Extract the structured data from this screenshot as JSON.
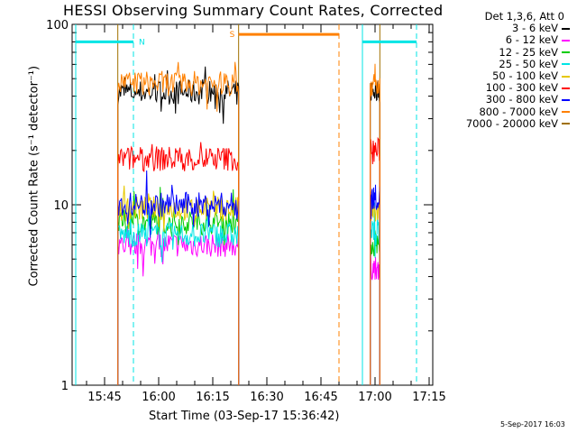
{
  "chart_data": {
    "type": "line",
    "title": "HESSI Observing Summary Count Rates, Corrected",
    "xlabel": "Start Time (03-Sep-17 15:36:42)",
    "ylabel": "Corrected Count Rate (s⁻¹ detector⁻¹)",
    "y_scale": "log",
    "ylim": [
      1,
      100
    ],
    "y_ticks": [
      "1",
      "10",
      "100"
    ],
    "x_range_minutes": [
      "15:36",
      "17:16"
    ],
    "x_ticks": [
      "15:45",
      "16:00",
      "16:15",
      "16:30",
      "16:45",
      "17:00",
      "17:15"
    ],
    "legend_title": "Det 1,3,6, Att 0",
    "series": [
      {
        "name": "3 - 6 keV",
        "color": "#000000",
        "segments": [
          [
            "15:48:40",
            "16:22:10",
            42
          ],
          [
            "16:58:40",
            "17:01:20",
            43
          ]
        ]
      },
      {
        "name": "6 - 12 keV",
        "color": "#ff00ff",
        "segments": [
          [
            "15:48:40",
            "16:22:10",
            6
          ],
          [
            "16:58:40",
            "17:01:20",
            4.5
          ]
        ]
      },
      {
        "name": "12 - 25 keV",
        "color": "#00cc00",
        "segments": [
          [
            "15:48:40",
            "16:22:10",
            8
          ],
          [
            "16:58:40",
            "17:01:20",
            6
          ]
        ]
      },
      {
        "name": "25 - 50 keV",
        "color": "#00e5e5",
        "segments": [
          [
            "15:48:40",
            "16:22:10",
            6.8
          ],
          [
            "16:58:40",
            "17:01:20",
            7
          ]
        ]
      },
      {
        "name": "50 - 100 keV",
        "color": "#e6c800",
        "segments": [
          [
            "15:48:40",
            "16:22:10",
            9.5
          ],
          [
            "16:58:40",
            "17:01:20",
            9
          ]
        ]
      },
      {
        "name": "100 - 300 keV",
        "color": "#ff0000",
        "segments": [
          [
            "15:48:40",
            "16:22:10",
            18
          ],
          [
            "16:58:40",
            "17:01:20",
            20
          ]
        ]
      },
      {
        "name": "300 - 800 keV",
        "color": "#0000ff",
        "segments": [
          [
            "15:48:40",
            "16:22:10",
            10
          ],
          [
            "16:58:40",
            "17:01:20",
            11
          ]
        ]
      },
      {
        "name": "800 - 7000 keV",
        "color": "#ff8000",
        "segments": [
          [
            "15:48:40",
            "16:22:10",
            47
          ],
          [
            "16:58:40",
            "17:01:20",
            46
          ]
        ]
      },
      {
        "name": "7000 - 20000 keV",
        "color": "#a07000",
        "segments": []
      }
    ],
    "annotations": [
      {
        "label": "N",
        "color": "#00e5e5",
        "start": "15:37:00",
        "end": "15:53:00",
        "level": 80
      },
      {
        "label": "",
        "color": "#00e5e5",
        "start": "16:56:30",
        "end": "17:11:30",
        "level": 80
      },
      {
        "label": "S",
        "color": "#ff8000",
        "start": "16:22:10",
        "end": "16:50:00",
        "level": 88
      }
    ],
    "vlines": [
      {
        "time": "15:37:00",
        "color": "#00e5e5",
        "style": "solid"
      },
      {
        "time": "15:53:00",
        "color": "#00e5e5",
        "style": "dashed"
      },
      {
        "time": "16:22:10",
        "color": "#a07000",
        "style": "solid"
      },
      {
        "time": "16:50:00",
        "color": "#ff8000",
        "style": "dashed"
      },
      {
        "time": "16:56:30",
        "color": "#00e5e5",
        "style": "solid"
      },
      {
        "time": "17:11:30",
        "color": "#00e5e5",
        "style": "dashed"
      },
      {
        "time": "15:48:40",
        "color": "#a07000",
        "style": "solid"
      },
      {
        "time": "17:01:20",
        "color": "#a07000",
        "style": "solid"
      }
    ],
    "grid": false,
    "legend_position": "right"
  },
  "footer": {
    "stamp": "5-Sep-2017 16:03"
  }
}
